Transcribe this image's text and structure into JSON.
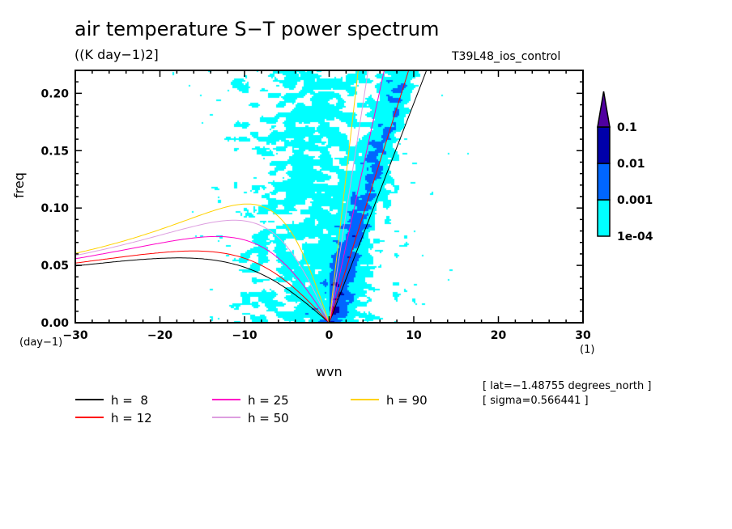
{
  "chart_data": {
    "type": "heatmap",
    "title": "air temperature S−T power spectrum",
    "units": "((K day−1)2]",
    "experiment": "T39L48_ios_control",
    "xlabel": "wvn",
    "ylabel": "freq",
    "x_unit": "(1)",
    "y_unit": "(day−1)",
    "xlim": [
      -30,
      30
    ],
    "ylim": [
      0,
      0.22
    ],
    "x_ticks": [
      "−30",
      "−20",
      "−10",
      "0",
      "10",
      "20",
      "30"
    ],
    "y_ticks": [
      "0.00",
      "0.05",
      "0.10",
      "0.15",
      "0.20"
    ],
    "colorbar": {
      "levels": [
        "1e-04",
        "0.001",
        "0.01",
        "0.1"
      ],
      "colors": [
        "#00ffff",
        "#0066ff",
        "#0000aa",
        "#5000a0"
      ],
      "extend": "max"
    },
    "dispersion_curves": [
      {
        "name": "h =  8",
        "h": 8,
        "color": "#000000"
      },
      {
        "name": "h = 12",
        "h": 12,
        "color": "#ff0000"
      },
      {
        "name": "h = 25",
        "h": 25,
        "color": "#ff00c8"
      },
      {
        "name": "h = 50",
        "h": 50,
        "color": "#dd9ee0"
      },
      {
        "name": "h = 90",
        "h": 90,
        "color": "#ffd200"
      }
    ],
    "annotations": [
      "[ lat=−1.48755 degrees_north ]",
      "[ sigma=0.566441 ]"
    ]
  }
}
